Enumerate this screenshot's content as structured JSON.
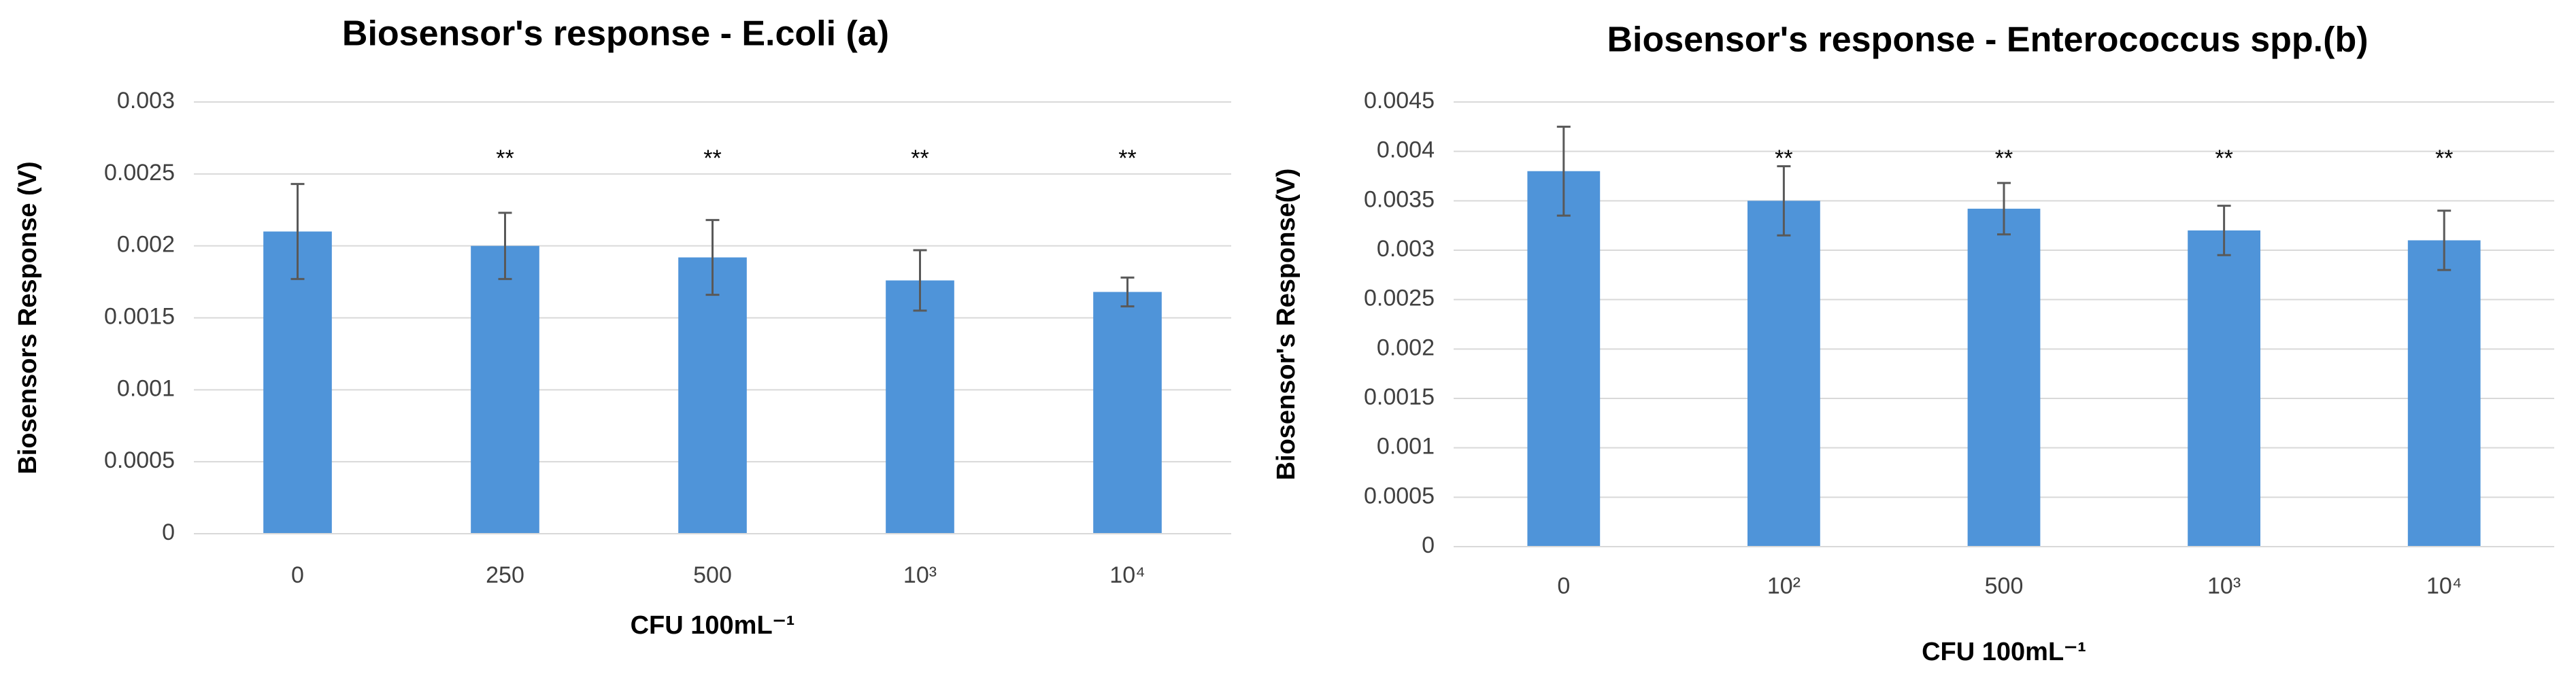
{
  "chart_data": [
    {
      "type": "bar",
      "title": "Biosensor's response - E.coli (a)",
      "x_label": "CFU 100mL⁻¹",
      "y_label": "Biosensors Response (V)",
      "categories": [
        "0",
        "250",
        "500",
        "10³",
        "10⁴"
      ],
      "values": [
        0.0021,
        0.002,
        0.00192,
        0.00176,
        0.00168
      ],
      "errors": [
        0.00033,
        0.00023,
        0.00026,
        0.00021,
        0.0001
      ],
      "annotations": [
        null,
        "**",
        "**",
        "**",
        "**"
      ],
      "color": "#4f94d9",
      "grid": true,
      "ylim": [
        0,
        0.003
      ],
      "yticks": [
        0,
        0.0005,
        0.001,
        0.0015,
        0.002,
        0.0025,
        0.003
      ]
    },
    {
      "type": "bar",
      "title": "Biosensor's response - Enterococcus spp.(b)",
      "x_label": "CFU 100mL⁻¹",
      "y_label": "Biosensor's Response(V)",
      "categories": [
        "0",
        "10²",
        "500",
        "10³",
        "10⁴"
      ],
      "values": [
        0.0038,
        0.0035,
        0.00342,
        0.0032,
        0.0031
      ],
      "errors": [
        0.00045,
        0.00035,
        0.00026,
        0.00025,
        0.0003
      ],
      "annotations": [
        null,
        "**",
        "**",
        "**",
        "**"
      ],
      "color": "#4f94d9",
      "grid": true,
      "ylim": [
        0,
        0.0045
      ],
      "yticks": [
        0,
        0.0005,
        0.001,
        0.0015,
        0.002,
        0.0025,
        0.003,
        0.0035,
        0.004,
        0.0045
      ]
    }
  ]
}
